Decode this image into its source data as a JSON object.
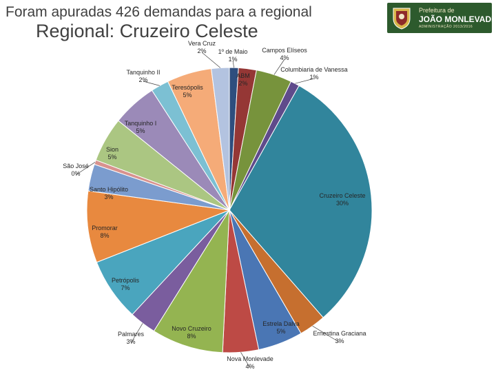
{
  "header": {
    "headline": "Foram apuradas 426 demandas para a regional",
    "logo_line1": "Prefeitura de",
    "logo_line2": "JOÃO MONLEVADE",
    "logo_line3": "ADMINISTRAÇÃO 2013/2016",
    "logo_icon": "city-crest-icon"
  },
  "chart_data": {
    "type": "pie",
    "title": "Regional: Cruzeiro Celeste",
    "start_angle_deg": 0,
    "direction": "clockwise",
    "slices": [
      {
        "label": "1º de Maio",
        "pct_label": "1%",
        "value": 1,
        "color": "#2e4e7e"
      },
      {
        "label": "ABM",
        "pct_label": "2%",
        "value": 2,
        "color": "#953735"
      },
      {
        "label": "Campos Elíseos",
        "pct_label": "4%",
        "value": 4,
        "color": "#77933c"
      },
      {
        "label": "Columbiaria de Vanessa",
        "pct_label": "1%",
        "value": 1,
        "color": "#5f4b8b"
      },
      {
        "label": "Cruzeiro Celeste",
        "pct_label": "30%",
        "value": 30,
        "color": "#31859c"
      },
      {
        "label": "Ernestina Graciana",
        "pct_label": "3%",
        "value": 3,
        "color": "#c66f2f"
      },
      {
        "label": "Estrela Dalva",
        "pct_label": "5%",
        "value": 5,
        "color": "#4a76b4"
      },
      {
        "label": "Nova Monlevade",
        "pct_label": "4%",
        "value": 4,
        "color": "#bd4a45"
      },
      {
        "label": "Novo Cruzeiro",
        "pct_label": "8%",
        "value": 8,
        "color": "#94b451"
      },
      {
        "label": "Palmares",
        "pct_label": "3%",
        "value": 3,
        "color": "#7a5d9e"
      },
      {
        "label": "Petrópolis",
        "pct_label": "7%",
        "value": 7,
        "color": "#4aa5be"
      },
      {
        "label": "Promorar",
        "pct_label": "8%",
        "value": 8,
        "color": "#e8893f"
      },
      {
        "label": "Santo Hipólito",
        "pct_label": "3%",
        "value": 3,
        "color": "#7b9cce"
      },
      {
        "label": "São José",
        "pct_label": "0%",
        "value": 0.5,
        "color": "#d8928e"
      },
      {
        "label": "Sion",
        "pct_label": "5%",
        "value": 5,
        "color": "#abc682"
      },
      {
        "label": "Tanquinho I",
        "pct_label": "5%",
        "value": 5,
        "color": "#9b8ab8"
      },
      {
        "label": "Tanquinho II",
        "pct_label": "2%",
        "value": 2,
        "color": "#7cc0d3"
      },
      {
        "label": "Teresópolis",
        "pct_label": "5%",
        "value": 5,
        "color": "#f5ab78"
      },
      {
        "label": "Vera Cruz",
        "pct_label": "2%",
        "value": 2,
        "color": "#b3c3e0"
      }
    ]
  }
}
